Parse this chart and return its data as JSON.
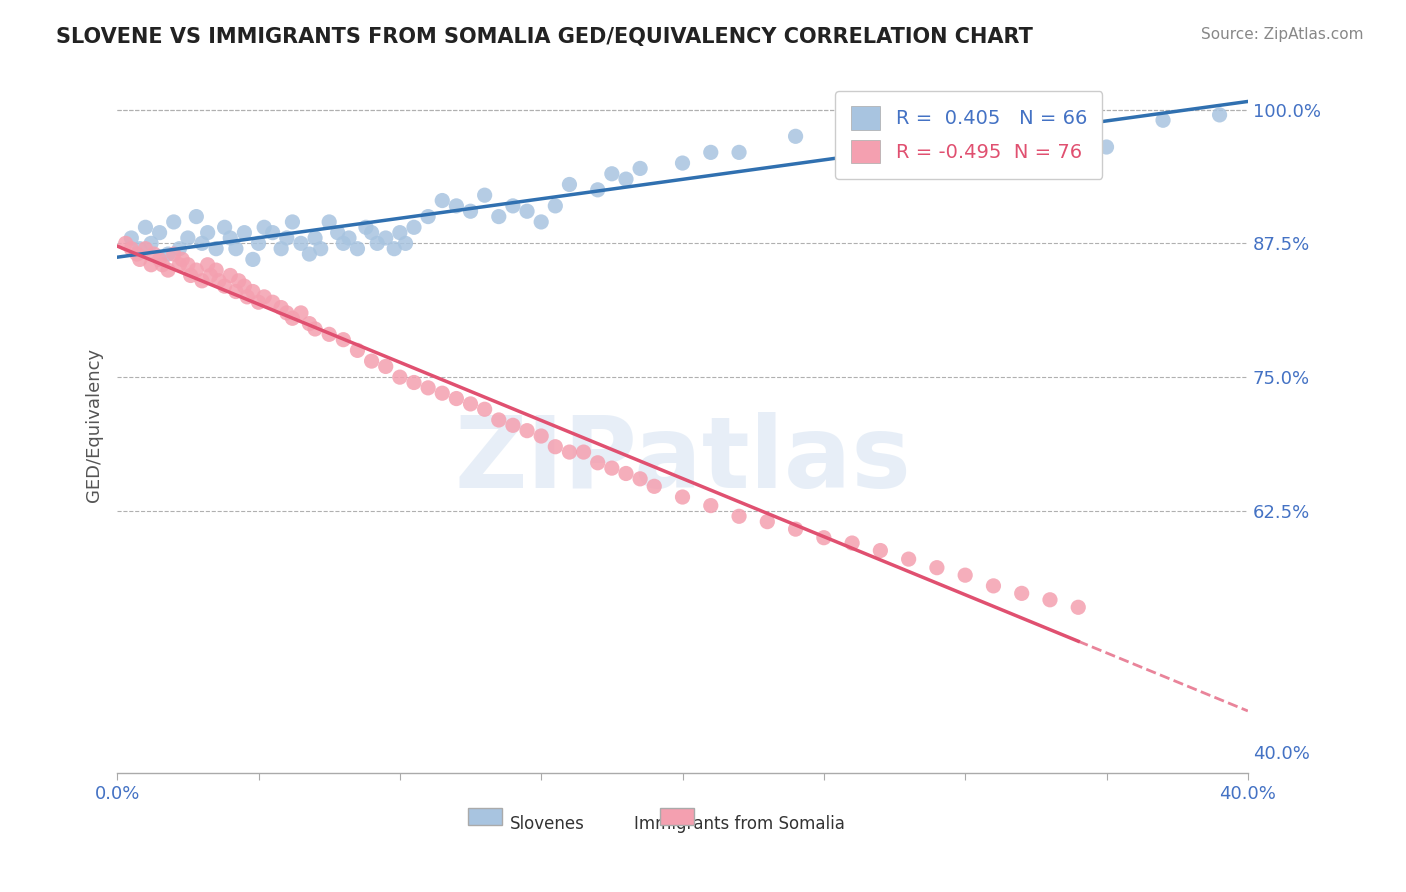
{
  "title": "SLOVENE VS IMMIGRANTS FROM SOMALIA GED/EQUIVALENCY CORRELATION CHART",
  "source": "Source: ZipAtlas.com",
  "xlabel": "",
  "ylabel": "GED/Equivalency",
  "xlim": [
    0.0,
    0.4
  ],
  "ylim": [
    0.38,
    1.03
  ],
  "xticks": [
    0.0,
    0.05,
    0.1,
    0.15,
    0.2,
    0.25,
    0.3,
    0.35,
    0.4
  ],
  "xticklabels": [
    "0.0%",
    "",
    "",
    "",
    "",
    "",
    "",
    "",
    "40.0%"
  ],
  "yticks_right": [
    0.4,
    0.625,
    0.75,
    0.875,
    1.0
  ],
  "yticklabels_right": [
    "40.0%",
    "62.5%",
    "75.0%",
    "87.5%",
    "100.0%"
  ],
  "grid_yticks": [
    1.0,
    0.875,
    0.75,
    0.625
  ],
  "blue_R": 0.405,
  "blue_N": 66,
  "pink_R": -0.495,
  "pink_N": 76,
  "blue_color": "#a8c4e0",
  "blue_line_color": "#3070b0",
  "pink_color": "#f4a0b0",
  "pink_line_color": "#e05070",
  "blue_label": "Slovenes",
  "pink_label": "Immigrants from Somalia",
  "watermark": "ZIPatlas",
  "blue_scatter_x": [
    0.005,
    0.008,
    0.01,
    0.012,
    0.015,
    0.018,
    0.02,
    0.022,
    0.025,
    0.028,
    0.03,
    0.032,
    0.035,
    0.038,
    0.04,
    0.042,
    0.045,
    0.048,
    0.05,
    0.052,
    0.055,
    0.058,
    0.06,
    0.062,
    0.065,
    0.068,
    0.07,
    0.072,
    0.075,
    0.078,
    0.08,
    0.082,
    0.085,
    0.088,
    0.09,
    0.092,
    0.095,
    0.098,
    0.1,
    0.102,
    0.105,
    0.11,
    0.115,
    0.12,
    0.125,
    0.13,
    0.135,
    0.14,
    0.145,
    0.15,
    0.155,
    0.16,
    0.17,
    0.175,
    0.18,
    0.185,
    0.2,
    0.21,
    0.22,
    0.24,
    0.26,
    0.28,
    0.3,
    0.35,
    0.37,
    0.39
  ],
  "blue_scatter_y": [
    0.88,
    0.87,
    0.89,
    0.875,
    0.885,
    0.865,
    0.895,
    0.87,
    0.88,
    0.9,
    0.875,
    0.885,
    0.87,
    0.89,
    0.88,
    0.87,
    0.885,
    0.86,
    0.875,
    0.89,
    0.885,
    0.87,
    0.88,
    0.895,
    0.875,
    0.865,
    0.88,
    0.87,
    0.895,
    0.885,
    0.875,
    0.88,
    0.87,
    0.89,
    0.885,
    0.875,
    0.88,
    0.87,
    0.885,
    0.875,
    0.89,
    0.9,
    0.915,
    0.91,
    0.905,
    0.92,
    0.9,
    0.91,
    0.905,
    0.895,
    0.91,
    0.93,
    0.925,
    0.94,
    0.935,
    0.945,
    0.95,
    0.96,
    0.96,
    0.975,
    0.98,
    0.97,
    0.985,
    0.965,
    0.99,
    0.995
  ],
  "pink_scatter_x": [
    0.003,
    0.005,
    0.007,
    0.008,
    0.01,
    0.012,
    0.013,
    0.015,
    0.016,
    0.018,
    0.02,
    0.022,
    0.023,
    0.025,
    0.026,
    0.028,
    0.03,
    0.032,
    0.033,
    0.035,
    0.036,
    0.038,
    0.04,
    0.042,
    0.043,
    0.045,
    0.046,
    0.048,
    0.05,
    0.052,
    0.055,
    0.058,
    0.06,
    0.062,
    0.065,
    0.068,
    0.07,
    0.075,
    0.08,
    0.085,
    0.09,
    0.095,
    0.1,
    0.105,
    0.11,
    0.115,
    0.12,
    0.125,
    0.13,
    0.135,
    0.14,
    0.145,
    0.15,
    0.155,
    0.16,
    0.165,
    0.17,
    0.175,
    0.18,
    0.185,
    0.19,
    0.2,
    0.21,
    0.22,
    0.23,
    0.24,
    0.25,
    0.26,
    0.27,
    0.28,
    0.29,
    0.3,
    0.31,
    0.32,
    0.33,
    0.34
  ],
  "pink_scatter_y": [
    0.875,
    0.87,
    0.865,
    0.86,
    0.87,
    0.855,
    0.865,
    0.86,
    0.855,
    0.85,
    0.865,
    0.855,
    0.86,
    0.855,
    0.845,
    0.85,
    0.84,
    0.855,
    0.845,
    0.85,
    0.84,
    0.835,
    0.845,
    0.83,
    0.84,
    0.835,
    0.825,
    0.83,
    0.82,
    0.825,
    0.82,
    0.815,
    0.81,
    0.805,
    0.81,
    0.8,
    0.795,
    0.79,
    0.785,
    0.775,
    0.765,
    0.76,
    0.75,
    0.745,
    0.74,
    0.735,
    0.73,
    0.725,
    0.72,
    0.71,
    0.705,
    0.7,
    0.695,
    0.685,
    0.68,
    0.68,
    0.67,
    0.665,
    0.66,
    0.655,
    0.648,
    0.638,
    0.63,
    0.62,
    0.615,
    0.608,
    0.6,
    0.595,
    0.588,
    0.58,
    0.572,
    0.565,
    0.555,
    0.548,
    0.542,
    0.535
  ]
}
